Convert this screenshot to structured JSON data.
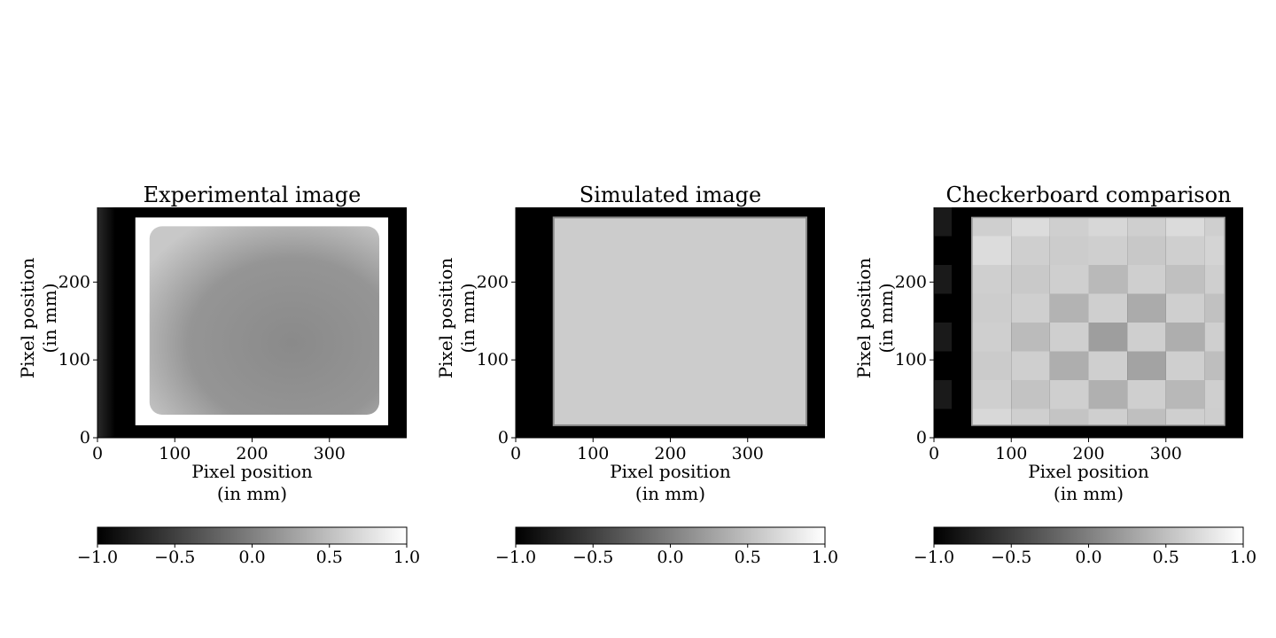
{
  "chart_data": [
    {
      "type": "heatmap",
      "title": "Experimental image",
      "xlabel": [
        "Pixel position",
        "(in mm)"
      ],
      "ylabel": [
        "Pixel position",
        "(in mm)"
      ],
      "xlim": [
        0,
        400
      ],
      "ylim": [
        0,
        296
      ],
      "xticks": [
        "0",
        "100",
        "200",
        "300"
      ],
      "yticks": [
        "0",
        "100",
        "200"
      ],
      "xtick_values": [
        0,
        100,
        200,
        300
      ],
      "ytick_values": [
        0,
        100,
        200
      ],
      "colormap": "gray",
      "colorbar": {
        "min": -1.0,
        "max": 1.0,
        "ticks": [
          "−1.0",
          "−0.5",
          "0.0",
          "0.5",
          "1.0"
        ],
        "tick_values": [
          -1.0,
          -0.5,
          0.0,
          0.5,
          1.0
        ]
      },
      "image": {
        "background_value": -1.0,
        "frame_value": 1.0,
        "interior_value": 0.15,
        "frame_extent": {
          "x": [
            49,
            376
          ],
          "y": [
            16,
            283
          ]
        },
        "left_edge_gradient": true
      }
    },
    {
      "type": "heatmap",
      "title": "Simulated image",
      "xlabel": [
        "Pixel position",
        "(in mm)"
      ],
      "ylabel": [
        "Pixel position",
        "(in mm)"
      ],
      "xlim": [
        0,
        400
      ],
      "ylim": [
        0,
        296
      ],
      "xticks": [
        "0",
        "100",
        "200",
        "300"
      ],
      "yticks": [
        "0",
        "100",
        "200"
      ],
      "xtick_values": [
        0,
        100,
        200,
        300
      ],
      "ytick_values": [
        0,
        100,
        200
      ],
      "colormap": "gray",
      "colorbar": {
        "min": -1.0,
        "max": 1.0,
        "ticks": [
          "−1.0",
          "−0.5",
          "0.0",
          "0.5",
          "1.0"
        ],
        "tick_values": [
          -1.0,
          -0.5,
          0.0,
          0.5,
          1.0
        ]
      },
      "image": {
        "background_value": -1.0,
        "interior_value": 0.6,
        "frame_extent": {
          "x": [
            49,
            376
          ],
          "y": [
            16,
            283
          ]
        }
      }
    },
    {
      "type": "heatmap",
      "title": "Checkerboard comparison",
      "xlabel": [
        "Pixel position",
        "(in mm)"
      ],
      "ylabel": [
        "Pixel position",
        "(in mm)"
      ],
      "xlim": [
        0,
        400
      ],
      "ylim": [
        0,
        296
      ],
      "xticks": [
        "0",
        "100",
        "200",
        "300"
      ],
      "yticks": [
        "0",
        "100",
        "200"
      ],
      "xtick_values": [
        0,
        100,
        200,
        300
      ],
      "ytick_values": [
        0,
        100,
        200
      ],
      "colormap": "gray",
      "colorbar": {
        "min": -1.0,
        "max": 1.0,
        "ticks": [
          "−1.0",
          "−0.5",
          "0.0",
          "0.5",
          "1.0"
        ],
        "tick_values": [
          -1.0,
          -0.5,
          0.0,
          0.5,
          1.0
        ]
      },
      "image": {
        "background_value": -1.0,
        "checker_cols": 8,
        "checker_rows": 8,
        "frame_extent": {
          "x": [
            49,
            376
          ],
          "y": [
            16,
            283
          ]
        }
      }
    }
  ]
}
